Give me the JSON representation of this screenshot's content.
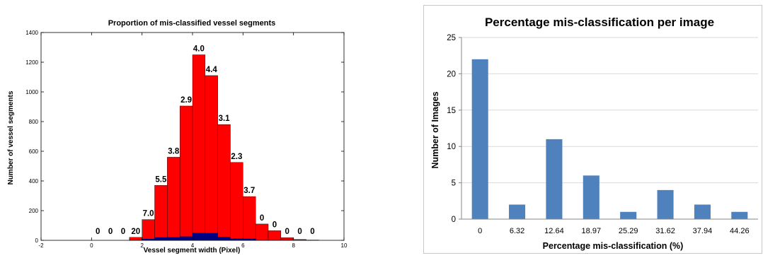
{
  "chart_data": [
    {
      "type": "bar",
      "title": "Proportion of mis-classified vessel segments",
      "xlabel": "Vessel segment width (Pixel)",
      "ylabel": "Number of vessel segments",
      "xlim": [
        -2,
        10
      ],
      "ylim": [
        0,
        1400
      ],
      "xticks": [
        "-2",
        "0",
        "2",
        "4",
        "6",
        "8",
        "10"
      ],
      "yticks": [
        "0",
        "200",
        "400",
        "600",
        "800",
        "1000",
        "1200",
        "1400"
      ],
      "bin_width": 0.5,
      "bin_starts": [
        0,
        0.5,
        1,
        1.5,
        2,
        2.5,
        3,
        3.5,
        4,
        4.5,
        5,
        5.5,
        6,
        6.5,
        7,
        7.5,
        8,
        8.5
      ],
      "series": [
        {
          "color": "#ff0000",
          "values": [
            0,
            0,
            0,
            20,
            140,
            370,
            560,
            905,
            1250,
            1110,
            780,
            525,
            295,
            110,
            65,
            18,
            6,
            2
          ]
        },
        {
          "color": "#000080",
          "values": [
            0,
            0,
            0,
            0,
            10,
            20,
            21,
            26,
            50,
            49,
            24,
            12,
            11,
            0,
            0,
            0,
            0,
            0
          ]
        }
      ],
      "data_labels": [
        "0",
        "0",
        "0",
        "20",
        "7.0",
        "5.5",
        "3.8",
        "2.9",
        "4.0",
        "4.4",
        "3.1",
        "2.3",
        "3.7",
        "0",
        "0",
        "0",
        "0",
        "0"
      ],
      "grid": false,
      "legend": "none"
    },
    {
      "type": "bar",
      "title": "Percentage mis-classification per image",
      "xlabel": "Percentage mis-classification (%)",
      "ylabel": "Number of Images",
      "categories": [
        "0",
        "6.32",
        "12.64",
        "18.97",
        "25.29",
        "31.62",
        "37.94",
        "44.26"
      ],
      "values": [
        22,
        2,
        11,
        6,
        1,
        4,
        2,
        1
      ],
      "ylim": [
        0,
        25
      ],
      "yticks": [
        "0",
        "5",
        "10",
        "15",
        "20",
        "25"
      ],
      "color": "#4f81bd",
      "grid": true,
      "legend": "none"
    }
  ]
}
